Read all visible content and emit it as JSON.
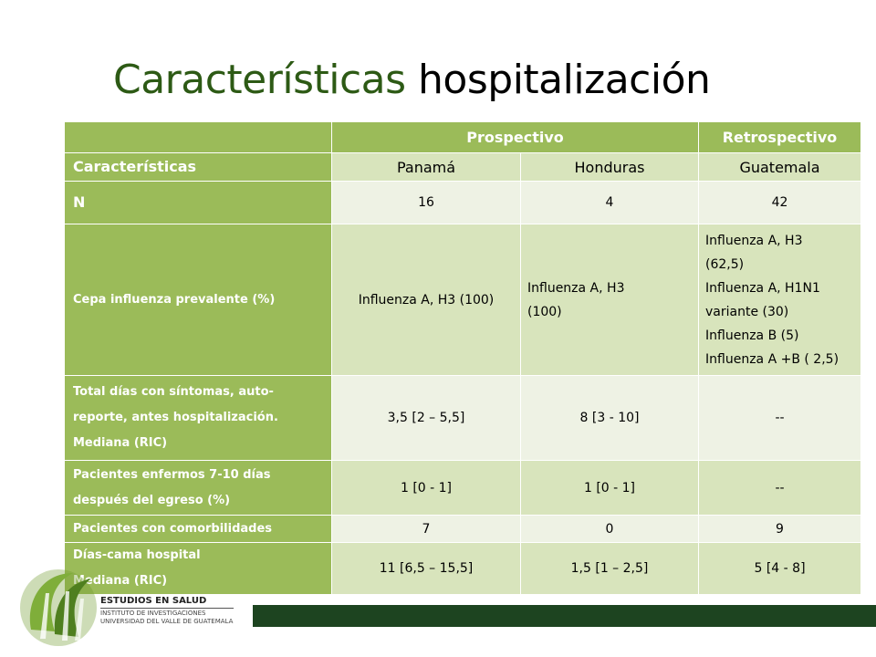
{
  "slide": {
    "title_part1": "Características",
    "title_part2": "hospitalización"
  },
  "table": {
    "group_headers": [
      "Prospectivo",
      "Retrospectivo"
    ],
    "column_header_label": "Características",
    "countries": [
      "Panamá",
      "Honduras",
      "Guatemala"
    ],
    "rows": [
      {
        "label": "N",
        "values": [
          "16",
          "4",
          "42"
        ]
      },
      {
        "label": "Cepa influenza prevalente (%)",
        "panama": "Influenza  A, H3 (100)",
        "honduras": [
          "Influenza  A, H3",
          "(100)"
        ],
        "guatemala": [
          "Influenza A, H3",
          "(62,5)",
          "Influenza A, H1N1",
          "variante (30)",
          "Influenza B (5)",
          "Influenza A +B ( 2,5)"
        ]
      },
      {
        "label": [
          "Total días con síntomas, auto-",
          "reporte, antes hospitalización.",
          "Mediana (RIC)"
        ],
        "values": [
          "3,5 [2 – 5,5]",
          "8 [3 - 10]",
          "--"
        ]
      },
      {
        "label": [
          "Pacientes enfermos 7-10 días",
          "después del egreso (%)"
        ],
        "values": [
          "1 [0 - 1]",
          "1 [0 - 1]",
          "--"
        ]
      },
      {
        "label": "Pacientes con comorbilidades",
        "values": [
          "7",
          "0",
          "9"
        ]
      },
      {
        "label": [
          "Días-cama hospital",
          "Mediana (RIC)"
        ],
        "values": [
          "11 [6,5 – 15,5]",
          "1,5 [1 – 2,5]",
          "5 [4 - 8]"
        ]
      }
    ]
  },
  "logo": {
    "name": "ESTUDIOS EN SALUD",
    "line1": "INSTITUTO DE INVESTIGACIONES",
    "line2": "UNIVERSIDAD DEL VALLE DE GUATEMALA"
  },
  "colors": {
    "title_green": "#2d5a15",
    "header_green": "#9bbb59",
    "shade": "#d8e4bc",
    "light": "#eef2e4",
    "footer_bar": "#1d4420"
  }
}
